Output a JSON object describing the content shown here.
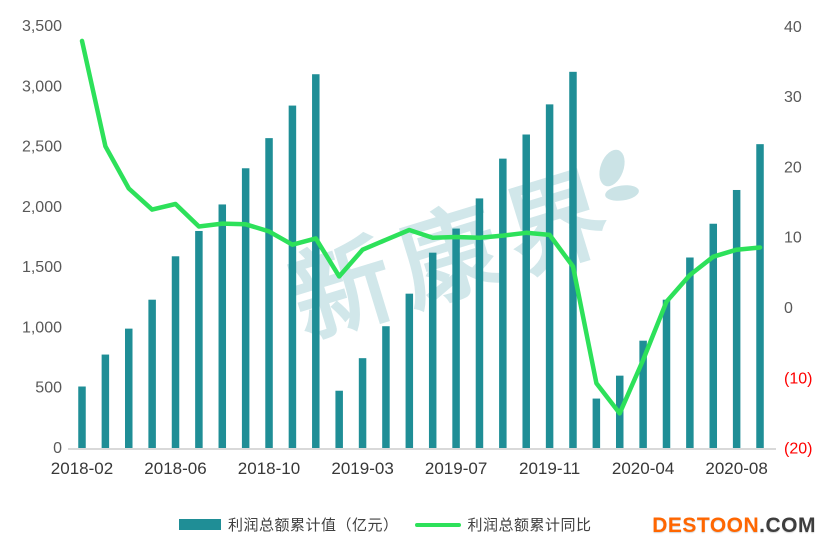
{
  "chart_data": {
    "type": "bar",
    "title": "",
    "categories": [
      "2018-02",
      "2018-03",
      "2018-04",
      "2018-05",
      "2018-06",
      "2018-07",
      "2018-08",
      "2018-09",
      "2018-10",
      "2018-11",
      "2018-12",
      "2019-02",
      "2019-03",
      "2019-04",
      "2019-05",
      "2019-06",
      "2019-07",
      "2019-08",
      "2019-09",
      "2019-10",
      "2019-11",
      "2019-12",
      "2020-02",
      "2020-03",
      "2020-04",
      "2020-05",
      "2020-06",
      "2020-07",
      "2020-08",
      "2020-09"
    ],
    "series": [
      {
        "name": "利润总额累计值（亿元）",
        "type": "bar",
        "axis": "left",
        "color": "#1f8e96",
        "values": [
          510,
          775,
          990,
          1230,
          1590,
          1800,
          2020,
          2320,
          2570,
          2840,
          3100,
          475,
          745,
          1010,
          1280,
          1620,
          1820,
          2070,
          2400,
          2600,
          2850,
          3120,
          410,
          600,
          890,
          1230,
          1580,
          1860,
          2140,
          2520
        ]
      },
      {
        "name": "利润总额累计同比",
        "type": "line",
        "axis": "right",
        "color": "#2de15a",
        "values": [
          38,
          23,
          17,
          14,
          14.8,
          11.6,
          12,
          11.9,
          10.9,
          9,
          9.9,
          4.5,
          8.3,
          9.7,
          11.1,
          10,
          10.1,
          10,
          10.3,
          10.7,
          10.4,
          5.9,
          -10.7,
          -15,
          -7.4,
          0.9,
          4.7,
          7.3,
          8.3,
          8.6
        ]
      }
    ],
    "left_axis": {
      "min": 0,
      "max": 3500,
      "ticks": [
        {
          "label": "3,500",
          "value": 3500
        },
        {
          "label": "3,000",
          "value": 3000
        },
        {
          "label": "2,500",
          "value": 2500
        },
        {
          "label": "2,000",
          "value": 2000
        },
        {
          "label": "1,500",
          "value": 1500
        },
        {
          "label": "1,000",
          "value": 1000
        },
        {
          "label": "500",
          "value": 500
        },
        {
          "label": "0",
          "value": 0
        }
      ],
      "color": "#595959"
    },
    "right_axis": {
      "min": -20,
      "max": 40,
      "ticks": [
        {
          "label": "40",
          "value": 40,
          "negative": false
        },
        {
          "label": "30",
          "value": 30,
          "negative": false
        },
        {
          "label": "20",
          "value": 20,
          "negative": false
        },
        {
          "label": "10",
          "value": 10,
          "negative": false
        },
        {
          "label": "0",
          "value": 0,
          "negative": false
        },
        {
          "label": "(10)",
          "value": -10,
          "negative": true
        },
        {
          "label": "(20)",
          "value": -20,
          "negative": true
        }
      ],
      "color": "#595959",
      "negative_color": "#fe0000"
    },
    "x_tick_labels": [
      {
        "label": "2018-02",
        "index": 0
      },
      {
        "label": "2018-06",
        "index": 4
      },
      {
        "label": "2018-10",
        "index": 8
      },
      {
        "label": "2019-03",
        "index": 12
      },
      {
        "label": "2019-07",
        "index": 16
      },
      {
        "label": "2019-11",
        "index": 20
      },
      {
        "label": "2020-04",
        "index": 24
      },
      {
        "label": "2020-08",
        "index": 28
      }
    ],
    "x_label_color": "#383838",
    "grid": false,
    "legend_position": "bottom",
    "axis_line_color": "#d9d9d9"
  },
  "legend": {
    "bar_label": "利润总额累计值（亿元）",
    "line_label": "利润总额累计同比"
  },
  "watermark": {
    "text": "新康界",
    "color": "#b9dbdf",
    "leaf_color": "#cbe3e6"
  },
  "brand": {
    "name": "DESTOON",
    "tld": ".COM",
    "name_color": "#ff6600",
    "tld_color": "#3d3d3d"
  }
}
